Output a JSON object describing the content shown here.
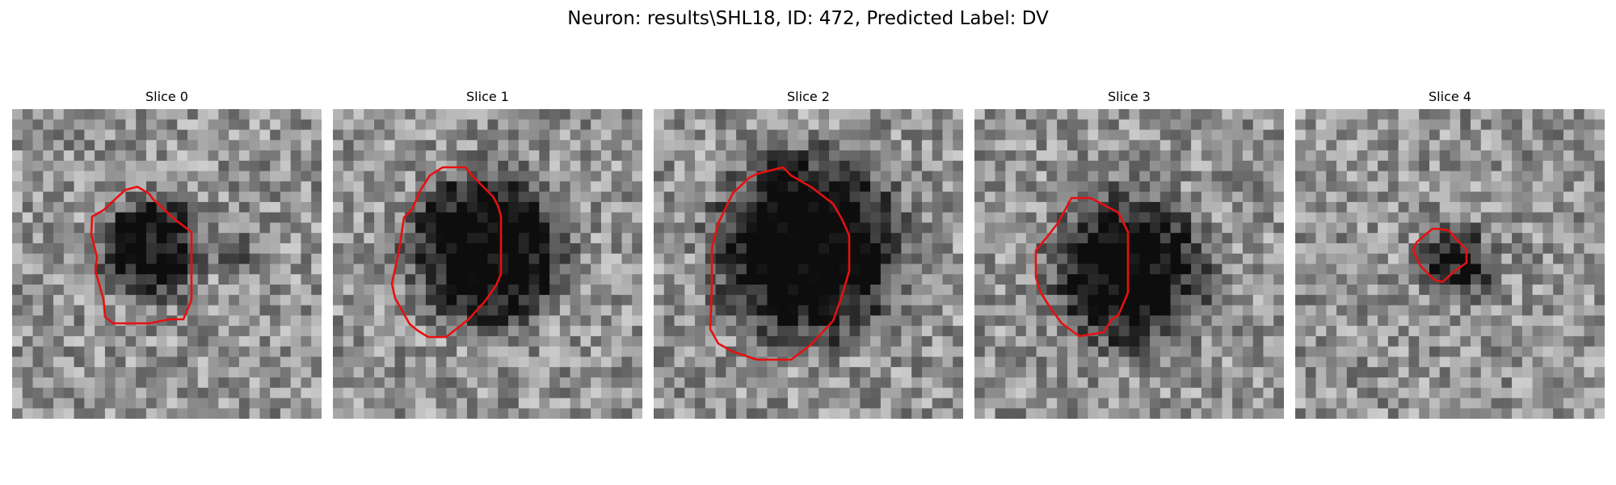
{
  "title": "Neuron: results\\SHL18, ID: 472, Predicted Label: DV",
  "contour_color": "#e81010",
  "slices": [
    {
      "label": "Slice 0",
      "blob": [
        0.45,
        0.45,
        0.17,
        0.55
      ],
      "blob2": [
        0.73,
        0.45,
        0.1,
        0.3
      ]
    },
    {
      "label": "Slice 1",
      "blob": [
        0.5,
        0.45,
        0.25,
        0.65
      ],
      "blob2": null
    },
    {
      "label": "Slice 2",
      "blob": [
        0.5,
        0.45,
        0.3,
        0.7
      ],
      "blob2": null
    },
    {
      "label": "Slice 3",
      "blob": [
        0.5,
        0.52,
        0.25,
        0.6
      ],
      "blob2": null
    },
    {
      "label": "Slice 4",
      "blob": [
        0.52,
        0.5,
        0.12,
        0.45
      ],
      "blob2": null
    }
  ]
}
